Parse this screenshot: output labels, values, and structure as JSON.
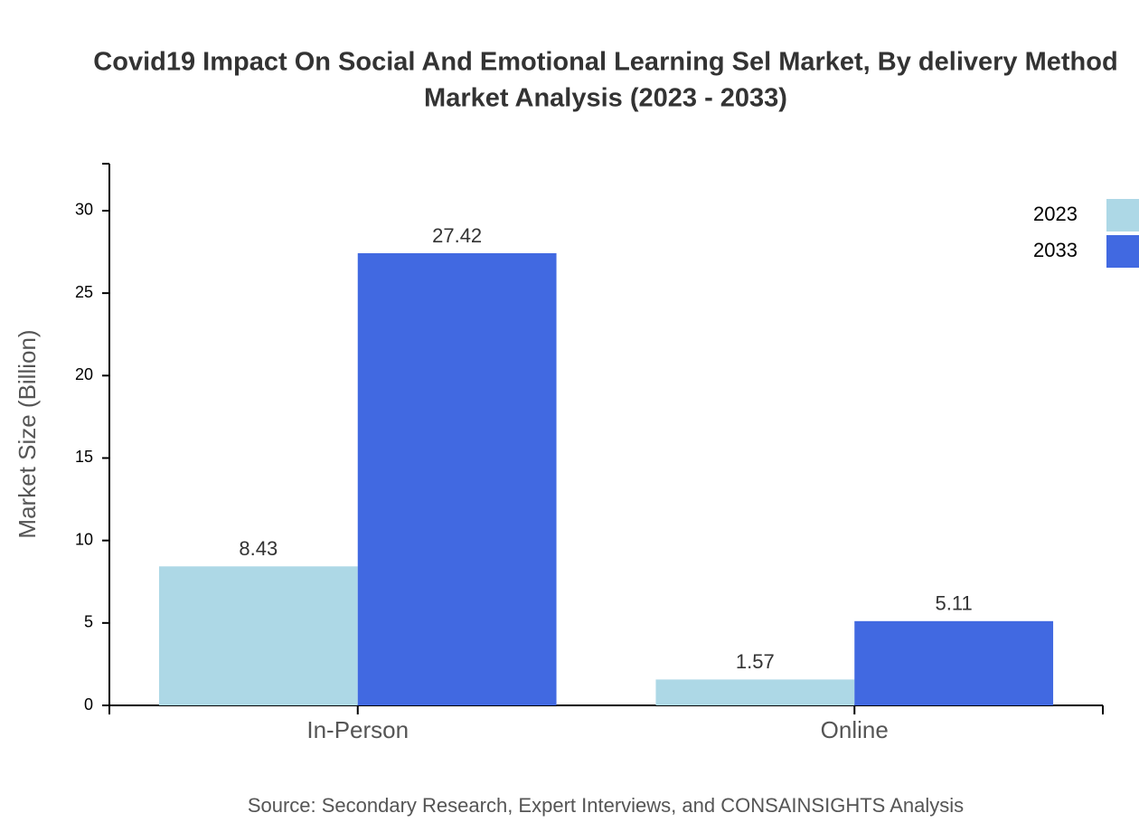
{
  "chart_data": {
    "type": "bar",
    "title": "Covid19 Impact On Social And Emotional Learning Sel Market, By delivery Method",
    "subtitle": "Market Analysis (2023 - 2033)",
    "y_label": "Market Size (Billion)",
    "source": "Source: Secondary Research, Expert Interviews, and CONSAINSIGHTS Analysis",
    "categories": [
      "In-Person",
      "Online"
    ],
    "series": [
      {
        "name": "2023",
        "color": "#add8e6",
        "values": [
          8.43,
          1.57
        ]
      },
      {
        "name": "2033",
        "color": "#4169e1",
        "values": [
          27.42,
          5.11
        ]
      }
    ],
    "ylim": [
      0,
      32.85
    ],
    "yticks": [
      0,
      5,
      10,
      15,
      20,
      25,
      30
    ],
    "legend": "top-right"
  }
}
